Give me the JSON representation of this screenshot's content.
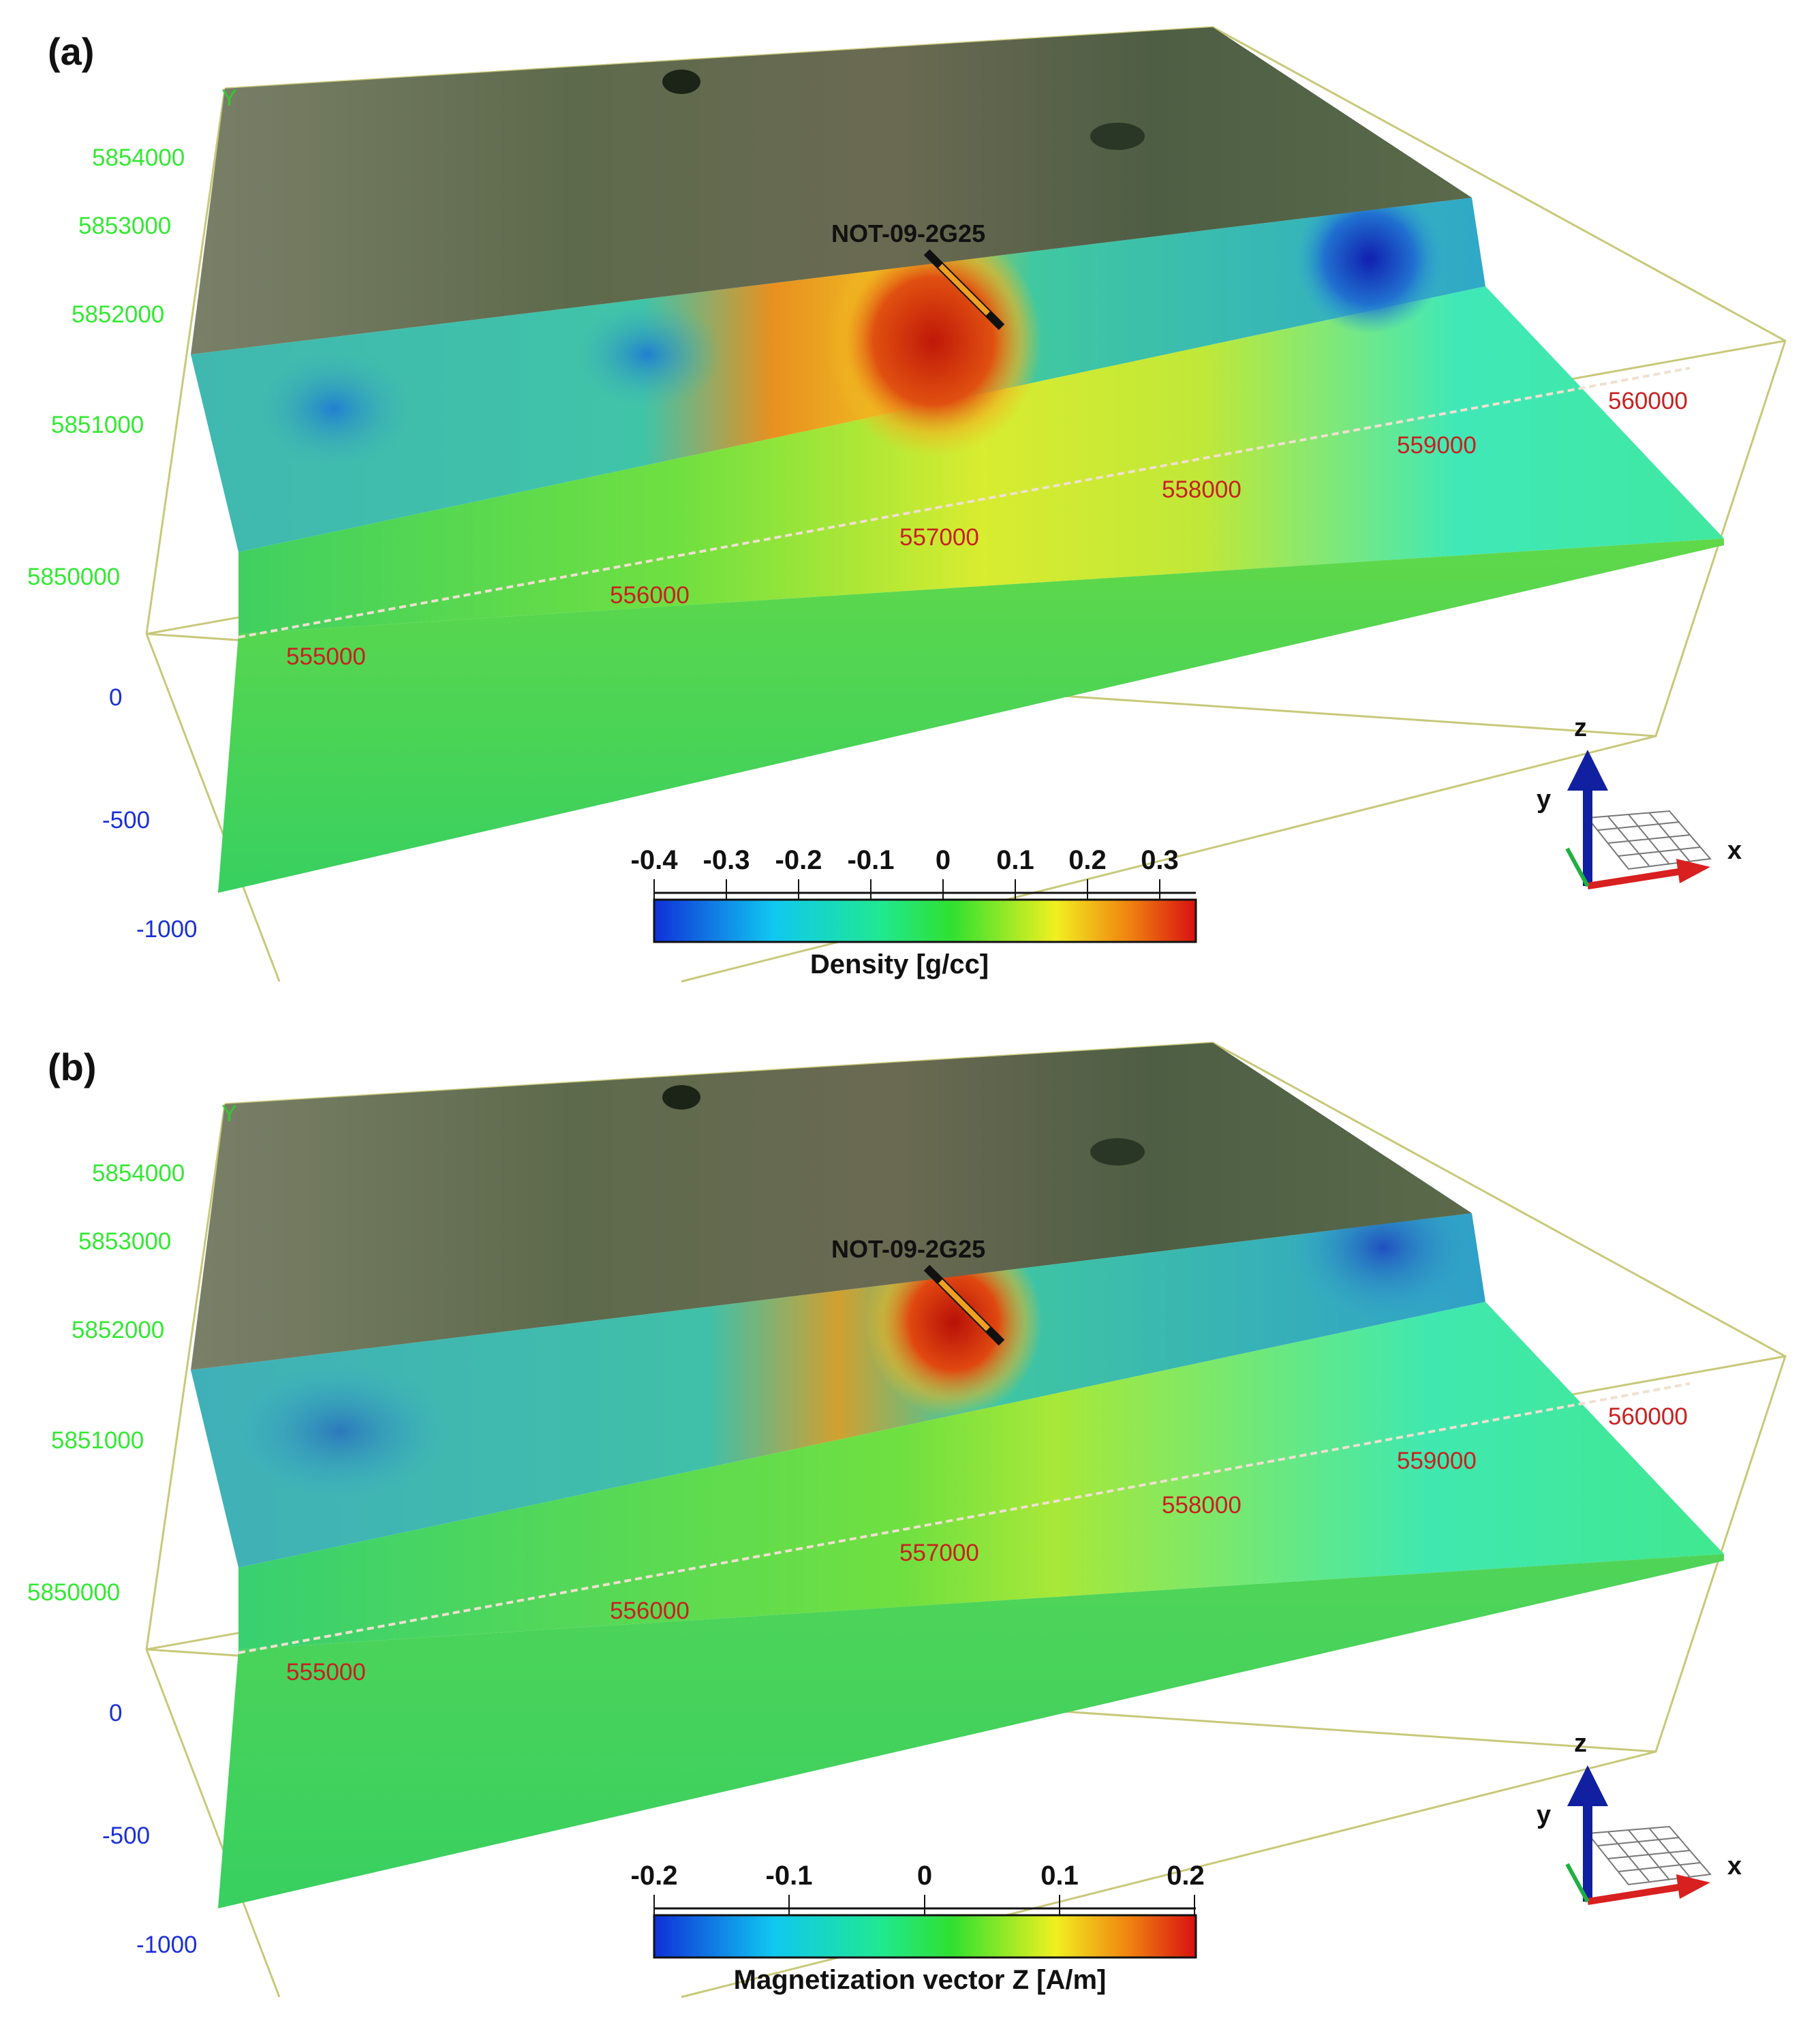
{
  "panels": [
    {
      "letter": "(a)",
      "y_axis_letter": "Y",
      "y_ticks": [
        "5854000",
        "5853000",
        "5852000",
        "5851000",
        "5850000"
      ],
      "z_ticks": [
        "0",
        "-500",
        "-1000"
      ],
      "x_ticks": [
        "555000",
        "556000",
        "557000",
        "558000",
        "559000",
        "560000"
      ],
      "drillhole": "NOT-09-2G25",
      "colorbar": {
        "title": "Density [g/cc]",
        "ticks": [
          "-0.4",
          "-0.3",
          "-0.2",
          "-0.1",
          "0",
          "0.1",
          "0.2",
          "0.3"
        ]
      },
      "triad": {
        "x": "x",
        "y": "y",
        "z": "z"
      }
    },
    {
      "letter": "(b)",
      "y_axis_letter": "Y",
      "y_ticks": [
        "5854000",
        "5853000",
        "5852000",
        "5851000",
        "5850000"
      ],
      "z_ticks": [
        "0",
        "-500",
        "-1000"
      ],
      "x_ticks": [
        "555000",
        "556000",
        "557000",
        "558000",
        "559000",
        "560000"
      ],
      "drillhole": "NOT-09-2G25",
      "colorbar": {
        "title": "Magnetization vector Z [A/m]",
        "ticks": [
          "-0.2",
          "-0.1",
          "0",
          "0.1",
          "0.2"
        ]
      },
      "triad": {
        "x": "x",
        "y": "y",
        "z": "z"
      }
    }
  ],
  "colors": {
    "y_labels": "#33e833",
    "z_labels": "#1a2fd6",
    "x_labels": "#c82020",
    "frame": "#c8c87a"
  }
}
